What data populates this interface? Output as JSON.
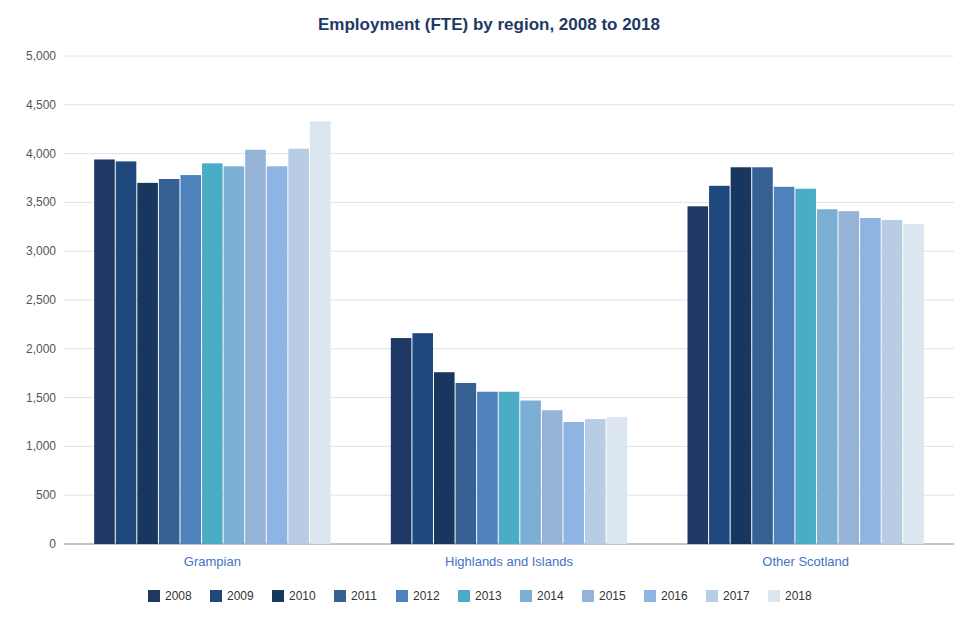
{
  "chart_data": {
    "type": "bar",
    "title": "Employment (FTE) by region, 2008 to 2018",
    "categories": [
      "Grampian",
      "Highlands and Islands",
      "Other Scotland"
    ],
    "series": [
      {
        "name": "2008",
        "color": "#1f3864",
        "values": [
          3940,
          2110,
          3460
        ]
      },
      {
        "name": "2009",
        "color": "#1f497d",
        "values": [
          3920,
          2160,
          3670
        ]
      },
      {
        "name": "2010",
        "color": "#17375e",
        "values": [
          3700,
          1760,
          3860
        ]
      },
      {
        "name": "2011",
        "color": "#376092",
        "values": [
          3740,
          1650,
          3860
        ]
      },
      {
        "name": "2012",
        "color": "#4f81bd",
        "values": [
          3780,
          1560,
          3660
        ]
      },
      {
        "name": "2013",
        "color": "#4bacc6",
        "values": [
          3900,
          1560,
          3640
        ]
      },
      {
        "name": "2014",
        "color": "#7bafd4",
        "values": [
          3870,
          1470,
          3430
        ]
      },
      {
        "name": "2015",
        "color": "#95b3d7",
        "values": [
          4040,
          1370,
          3410
        ]
      },
      {
        "name": "2016",
        "color": "#8db4e2",
        "values": [
          3870,
          1250,
          3340
        ]
      },
      {
        "name": "2017",
        "color": "#b8cce4",
        "values": [
          4050,
          1280,
          3320
        ]
      },
      {
        "name": "2018",
        "color": "#dce6f1",
        "values": [
          4330,
          1300,
          3280
        ]
      }
    ],
    "ylim": [
      0,
      5000
    ],
    "yticks": [
      0,
      500,
      {
        "value": 1000,
        "label": "1,000"
      },
      {
        "value": 1500,
        "label": "1,500"
      },
      {
        "value": 2000,
        "label": "2,000"
      },
      {
        "value": 2500,
        "label": "2,500"
      },
      {
        "value": 3000,
        "label": "3,000"
      },
      {
        "value": 3500,
        "label": "3,500"
      },
      {
        "value": 4000,
        "label": "4,000"
      },
      {
        "value": 4500,
        "label": "4,500"
      },
      {
        "value": 5000,
        "label": "5,000"
      }
    ],
    "grid": true,
    "legend": "bottom"
  }
}
